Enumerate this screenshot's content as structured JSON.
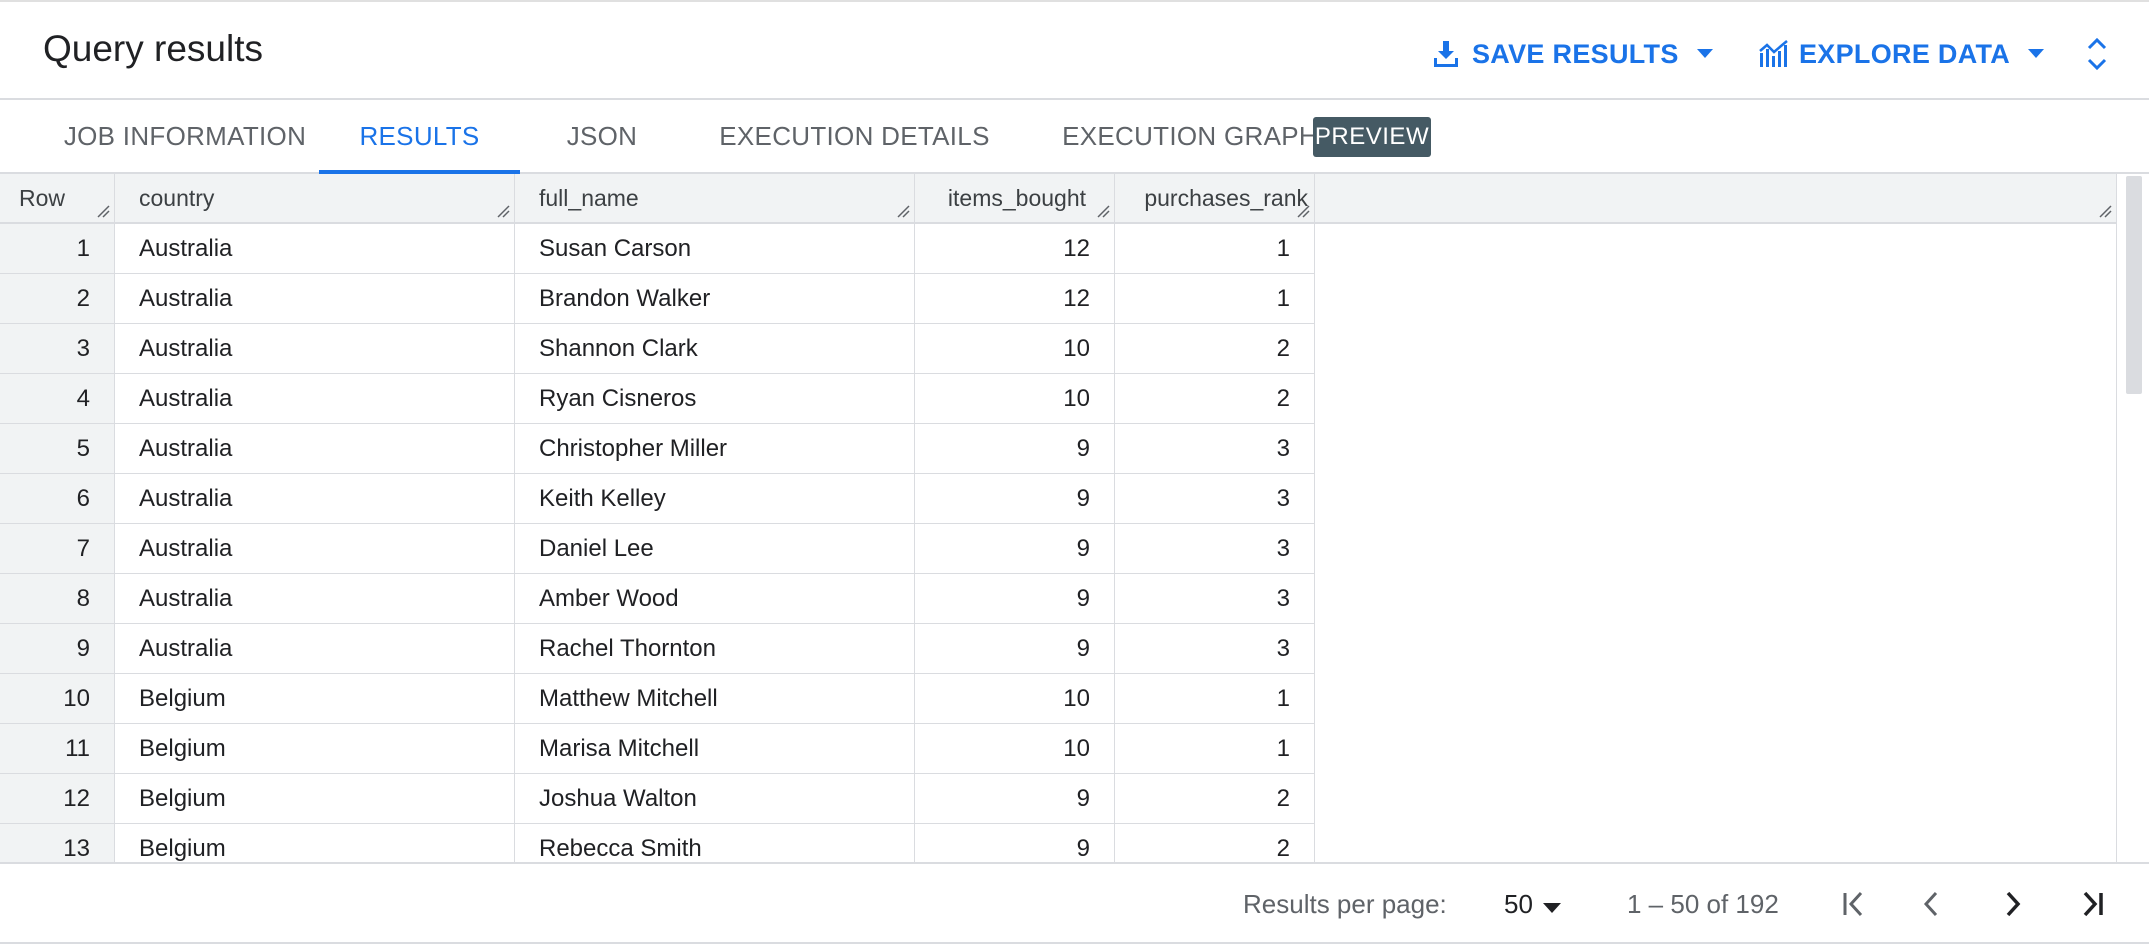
{
  "header": {
    "title": "Query results",
    "save_label": "SAVE RESULTS",
    "explore_label": "EXPLORE DATA"
  },
  "tabs": [
    {
      "label": "JOB INFORMATION",
      "active": false
    },
    {
      "label": "RESULTS",
      "active": true
    },
    {
      "label": "JSON",
      "active": false
    },
    {
      "label": "EXECUTION DETAILS",
      "active": false
    },
    {
      "label": "EXECUTION GRAPH",
      "active": false
    }
  ],
  "preview_badge": "PREVIEW",
  "table": {
    "columns": [
      "Row",
      "country",
      "full_name",
      "items_bought",
      "purchases_rank"
    ],
    "rows": [
      [
        "1",
        "Australia",
        "Susan Carson",
        "12",
        "1"
      ],
      [
        "2",
        "Australia",
        "Brandon Walker",
        "12",
        "1"
      ],
      [
        "3",
        "Australia",
        "Shannon Clark",
        "10",
        "2"
      ],
      [
        "4",
        "Australia",
        "Ryan Cisneros",
        "10",
        "2"
      ],
      [
        "5",
        "Australia",
        "Christopher Miller",
        "9",
        "3"
      ],
      [
        "6",
        "Australia",
        "Keith Kelley",
        "9",
        "3"
      ],
      [
        "7",
        "Australia",
        "Daniel Lee",
        "9",
        "3"
      ],
      [
        "8",
        "Australia",
        "Amber Wood",
        "9",
        "3"
      ],
      [
        "9",
        "Australia",
        "Rachel Thornton",
        "9",
        "3"
      ],
      [
        "10",
        "Belgium",
        "Matthew Mitchell",
        "10",
        "1"
      ],
      [
        "11",
        "Belgium",
        "Marisa Mitchell",
        "10",
        "1"
      ],
      [
        "12",
        "Belgium",
        "Joshua Walton",
        "9",
        "2"
      ],
      [
        "13",
        "Belgium",
        "Rebecca Smith",
        "9",
        "2"
      ]
    ]
  },
  "footer": {
    "per_page_label": "Results per page:",
    "per_page_value": "50",
    "range_text": "1 – 50 of 192"
  },
  "icons": {
    "save": "download-icon",
    "explore": "chart-icon",
    "expand": "unfold-icon",
    "first": "first-page-icon",
    "prev": "chevron-left-icon",
    "next": "chevron-right-icon",
    "last": "last-page-icon"
  },
  "colors": {
    "accent": "#1a73e8",
    "badge": "#455a64",
    "header_bg": "#f1f3f4",
    "border": "#dadce0"
  }
}
